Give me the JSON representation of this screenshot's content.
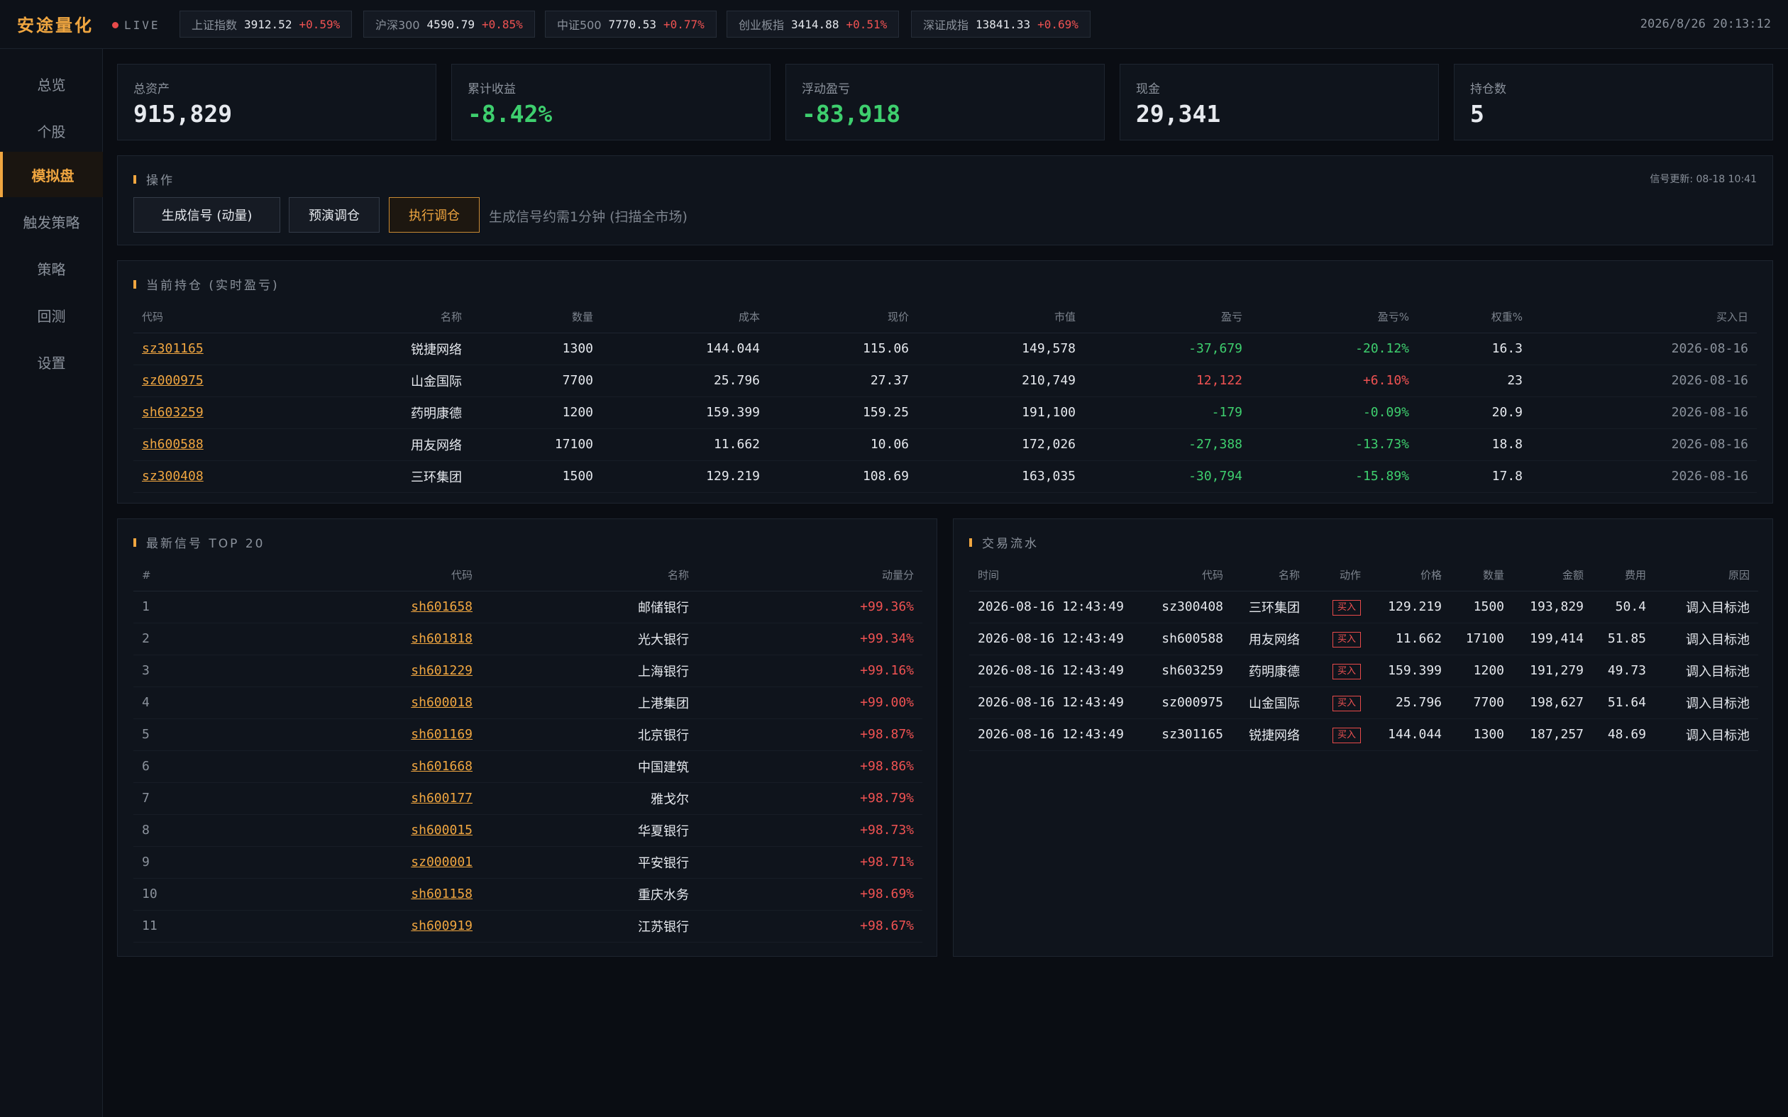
{
  "app": {
    "brand": "安途量化",
    "live": "LIVE",
    "datetime": "2026/8/26 20:13:12"
  },
  "tickers": [
    {
      "name": "上证指数",
      "value": "3912.52",
      "change": "+0.59%"
    },
    {
      "name": "沪深300",
      "value": "4590.79",
      "change": "+0.85%"
    },
    {
      "name": "中证500",
      "value": "7770.53",
      "change": "+0.77%"
    },
    {
      "name": "创业板指",
      "value": "3414.88",
      "change": "+0.51%"
    },
    {
      "name": "深证成指",
      "value": "13841.33",
      "change": "+0.69%"
    }
  ],
  "nav": [
    {
      "label": "总览"
    },
    {
      "label": "个股"
    },
    {
      "label": "模拟盘"
    },
    {
      "label": "触发策略"
    },
    {
      "label": "策略"
    },
    {
      "label": "回测"
    },
    {
      "label": "设置"
    }
  ],
  "stats": [
    {
      "label": "总资产",
      "value": "915,829"
    },
    {
      "label": "累计收益",
      "value": "-8.42%"
    },
    {
      "label": "浮动盈亏",
      "value": "-83,918"
    },
    {
      "label": "现金",
      "value": "29,341"
    },
    {
      "label": "持仓数",
      "value": "5"
    }
  ],
  "operations": {
    "title": "操作",
    "signal_update": "信号更新: 08-18 10:41",
    "btn_generate": "生成信号 (动量)",
    "btn_preview": "预演调仓",
    "btn_execute": "执行调仓",
    "hint": "生成信号约需1分钟 (扫描全市场)"
  },
  "holdings": {
    "title": "当前持仓 (实时盈亏)",
    "headers": [
      "代码",
      "名称",
      "数量",
      "成本",
      "现价",
      "市值",
      "盈亏",
      "盈亏%",
      "权重%",
      "买入日"
    ],
    "rows": [
      [
        "sz301165",
        "锐捷网络",
        "1300",
        "144.044",
        "115.06",
        "149,578",
        "-37,679",
        "-20.12%",
        "16.3",
        "2026-08-16"
      ],
      [
        "sz000975",
        "山金国际",
        "7700",
        "25.796",
        "27.37",
        "210,749",
        "12,122",
        "+6.10%",
        "23",
        "2026-08-16"
      ],
      [
        "sh603259",
        "药明康德",
        "1200",
        "159.399",
        "159.25",
        "191,100",
        "-179",
        "-0.09%",
        "20.9",
        "2026-08-16"
      ],
      [
        "sh600588",
        "用友网络",
        "17100",
        "11.662",
        "10.06",
        "172,026",
        "-27,388",
        "-13.73%",
        "18.8",
        "2026-08-16"
      ],
      [
        "sz300408",
        "三环集团",
        "1500",
        "129.219",
        "108.69",
        "163,035",
        "-30,794",
        "-15.89%",
        "17.8",
        "2026-08-16"
      ]
    ]
  },
  "signals": {
    "title": "最新信号 TOP 20",
    "headers": [
      "#",
      "代码",
      "名称",
      "动量分"
    ],
    "rows": [
      [
        "1",
        "sh601658",
        "邮储银行",
        "+99.36%"
      ],
      [
        "2",
        "sh601818",
        "光大银行",
        "+99.34%"
      ],
      [
        "3",
        "sh601229",
        "上海银行",
        "+99.16%"
      ],
      [
        "4",
        "sh600018",
        "上港集团",
        "+99.00%"
      ],
      [
        "5",
        "sh601169",
        "北京银行",
        "+98.87%"
      ],
      [
        "6",
        "sh601668",
        "中国建筑",
        "+98.86%"
      ],
      [
        "7",
        "sh600177",
        "雅戈尔",
        "+98.79%"
      ],
      [
        "8",
        "sh600015",
        "华夏银行",
        "+98.73%"
      ],
      [
        "9",
        "sz000001",
        "平安银行",
        "+98.71%"
      ],
      [
        "10",
        "sh601158",
        "重庆水务",
        "+98.69%"
      ],
      [
        "11",
        "sh600919",
        "江苏银行",
        "+98.67%"
      ]
    ]
  },
  "trades": {
    "title": "交易流水",
    "headers": [
      "时间",
      "代码",
      "名称",
      "动作",
      "价格",
      "数量",
      "金额",
      "费用",
      "原因"
    ],
    "rows": [
      [
        "2026-08-16 12:43:49",
        "sz300408",
        "三环集团",
        "买入",
        "129.219",
        "1500",
        "193,829",
        "50.4",
        "调入目标池"
      ],
      [
        "2026-08-16 12:43:49",
        "sh600588",
        "用友网络",
        "买入",
        "11.662",
        "17100",
        "199,414",
        "51.85",
        "调入目标池"
      ],
      [
        "2026-08-16 12:43:49",
        "sh603259",
        "药明康德",
        "买入",
        "159.399",
        "1200",
        "191,279",
        "49.73",
        "调入目标池"
      ],
      [
        "2026-08-16 12:43:49",
        "sz000975",
        "山金国际",
        "买入",
        "25.796",
        "7700",
        "198,627",
        "51.64",
        "调入目标池"
      ],
      [
        "2026-08-16 12:43:49",
        "sz301165",
        "锐捷网络",
        "买入",
        "144.044",
        "1300",
        "187,257",
        "48.69",
        "调入目标池"
      ]
    ]
  },
  "colors": {
    "accent": "#f0a640",
    "up": "#f05252",
    "down": "#3ecf6e",
    "background": "#0a0d13"
  }
}
